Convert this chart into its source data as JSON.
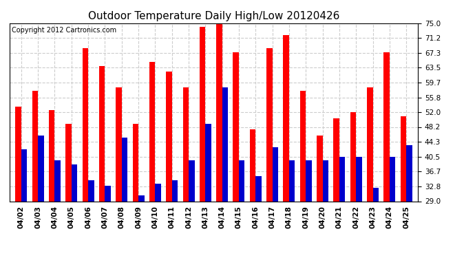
{
  "title": "Outdoor Temperature Daily High/Low 20120426",
  "copyright_text": "Copyright 2012 Cartronics.com",
  "dates": [
    "04/02",
    "04/03",
    "04/04",
    "04/05",
    "04/06",
    "04/07",
    "04/08",
    "04/09",
    "04/10",
    "04/11",
    "04/12",
    "04/13",
    "04/14",
    "04/15",
    "04/16",
    "04/17",
    "04/18",
    "04/19",
    "04/20",
    "04/21",
    "04/22",
    "04/23",
    "04/24",
    "04/25"
  ],
  "highs": [
    53.5,
    57.5,
    52.5,
    49.0,
    68.5,
    64.0,
    58.5,
    49.0,
    65.0,
    62.5,
    58.5,
    74.0,
    76.0,
    67.5,
    47.5,
    68.5,
    72.0,
    57.5,
    46.0,
    50.5,
    52.0,
    58.5,
    67.5,
    51.0
  ],
  "lows": [
    42.5,
    46.0,
    39.5,
    38.5,
    34.5,
    33.0,
    45.5,
    30.5,
    33.5,
    34.5,
    39.5,
    49.0,
    58.5,
    39.5,
    35.5,
    43.0,
    39.5,
    39.5,
    39.5,
    40.5,
    40.5,
    32.5,
    40.5,
    43.5
  ],
  "high_color": "#ff0000",
  "low_color": "#0000cc",
  "background_color": "#ffffff",
  "plot_bg_color": "#ffffff",
  "ylim_min": 29.0,
  "ylim_max": 75.0,
  "yticks": [
    29.0,
    32.8,
    36.7,
    40.5,
    44.3,
    48.2,
    52.0,
    55.8,
    59.7,
    63.5,
    67.3,
    71.2,
    75.0
  ],
  "grid_color": "#cccccc",
  "title_fontsize": 11,
  "copyright_fontsize": 7,
  "tick_fontsize": 7.5,
  "bar_width": 0.35
}
